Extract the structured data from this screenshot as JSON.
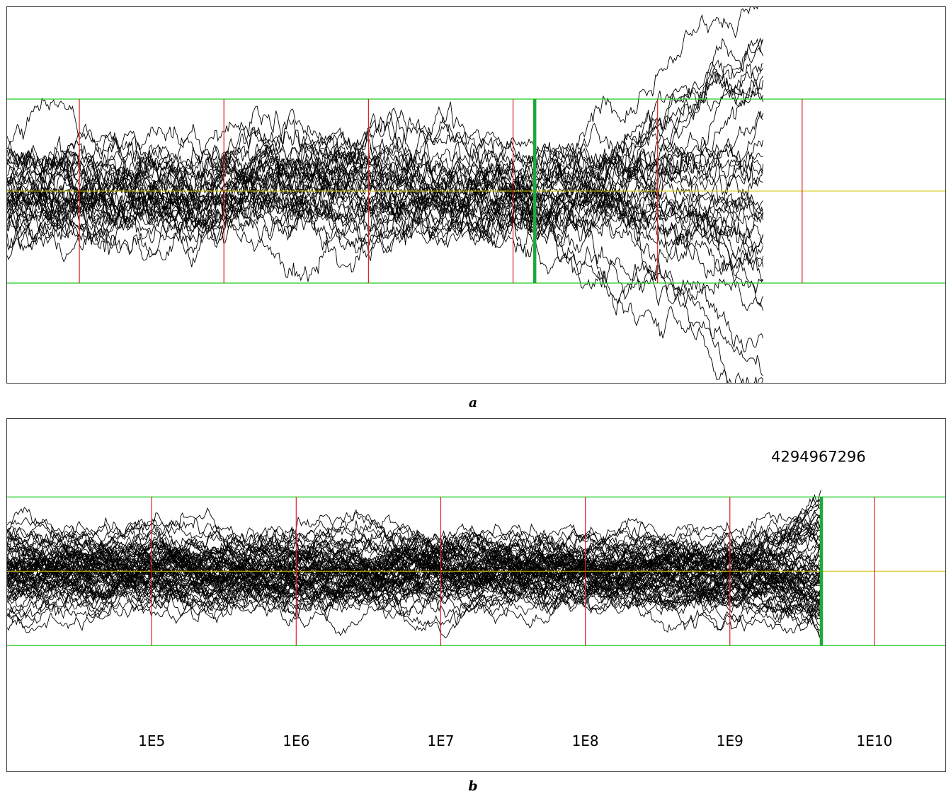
{
  "figure": {
    "caption_a": "a",
    "caption_b": "b"
  },
  "colors": {
    "threshold": "#22cc22",
    "decade": "#e02020",
    "zero": "#d4c400",
    "walk": "#000000",
    "marker": "#1ea83c"
  },
  "chart_data": [
    {
      "type": "line",
      "panel": "a",
      "description_of_axes": "log10 step count vs signed deviation; x tick labels not printed",
      "x_scale": "log10",
      "x_decades": [
        4.5,
        11.0
      ],
      "decade_lines": [
        5,
        6,
        7,
        8,
        9,
        10
      ],
      "bright_threshold_x_log10": 8.15,
      "horizontal_bands": [
        -1,
        0,
        1
      ],
      "n_series": 38,
      "series_end_x_log10": 9.73,
      "ylim": [
        -2.1,
        2.0
      ]
    },
    {
      "type": "line",
      "panel": "b",
      "x_scale": "log10",
      "x_decades": [
        4.0,
        10.5
      ],
      "decade_lines": [
        5,
        6,
        7,
        8,
        9,
        10
      ],
      "tick_labels": [
        "1E5",
        "1E6",
        "1E7",
        "1E8",
        "1E9",
        "1E10"
      ],
      "marker_label": "4294967296",
      "marker_x": 4294967296,
      "horizontal_bands": [
        -1,
        0,
        1
      ],
      "n_series": 70,
      "series_end_x_log10": 9.63,
      "ylim": [
        -1.95,
        2.05
      ]
    }
  ]
}
